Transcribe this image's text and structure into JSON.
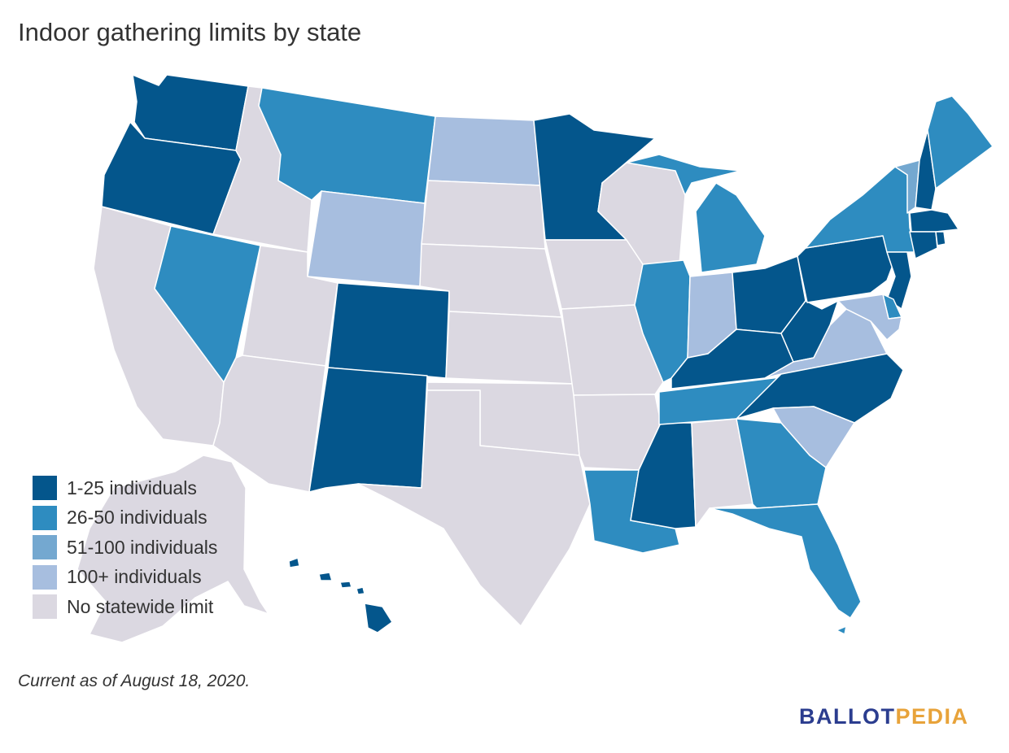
{
  "title": "Indoor gathering limits by state",
  "note": "Current as of August 18, 2020.",
  "brand": {
    "part1": "BALLOT",
    "part2": "PEDIA"
  },
  "colors": {
    "c1": "#04568c",
    "c2": "#2e8cc0",
    "c3": "#74a8d0",
    "c4": "#a7bedf",
    "c5": "#dbd8e1"
  },
  "legend": [
    {
      "label": "1-25 individuals",
      "color": "c1"
    },
    {
      "label": "26-50 individuals",
      "color": "c2"
    },
    {
      "label": "51-100 individuals",
      "color": "c3"
    },
    {
      "label": "100+ individuals",
      "color": "c4"
    },
    {
      "label": "No statewide limit",
      "color": "c5"
    }
  ],
  "states": {
    "WA": "c1",
    "OR": "c1",
    "CA": "c5",
    "ID": "c5",
    "NV": "c2",
    "MT": "c2",
    "WY": "c4",
    "UT": "c5",
    "AZ": "c5",
    "CO": "c1",
    "NM": "c1",
    "ND": "c4",
    "SD": "c5",
    "NE": "c5",
    "KS": "c5",
    "OK": "c5",
    "TX": "c5",
    "MN": "c1",
    "IA": "c5",
    "MO": "c5",
    "AR": "c5",
    "LA": "c2",
    "WI": "c5",
    "IL": "c2",
    "MS": "c1",
    "MI": "c2",
    "IN": "c4",
    "KY": "c1",
    "TN": "c2",
    "AL": "c5",
    "OH": "c1",
    "WV": "c1",
    "VA": "c4",
    "NC": "c1",
    "SC": "c4",
    "GA": "c2",
    "FL": "c2",
    "PA": "c1",
    "NY": "c2",
    "VT": "c3",
    "NH": "c1",
    "ME": "c2",
    "MA": "c1",
    "RI": "c1",
    "CT": "c1",
    "NJ": "c1",
    "DE": "c2",
    "MD": "c4",
    "AK": "c5",
    "HI": "c1"
  }
}
